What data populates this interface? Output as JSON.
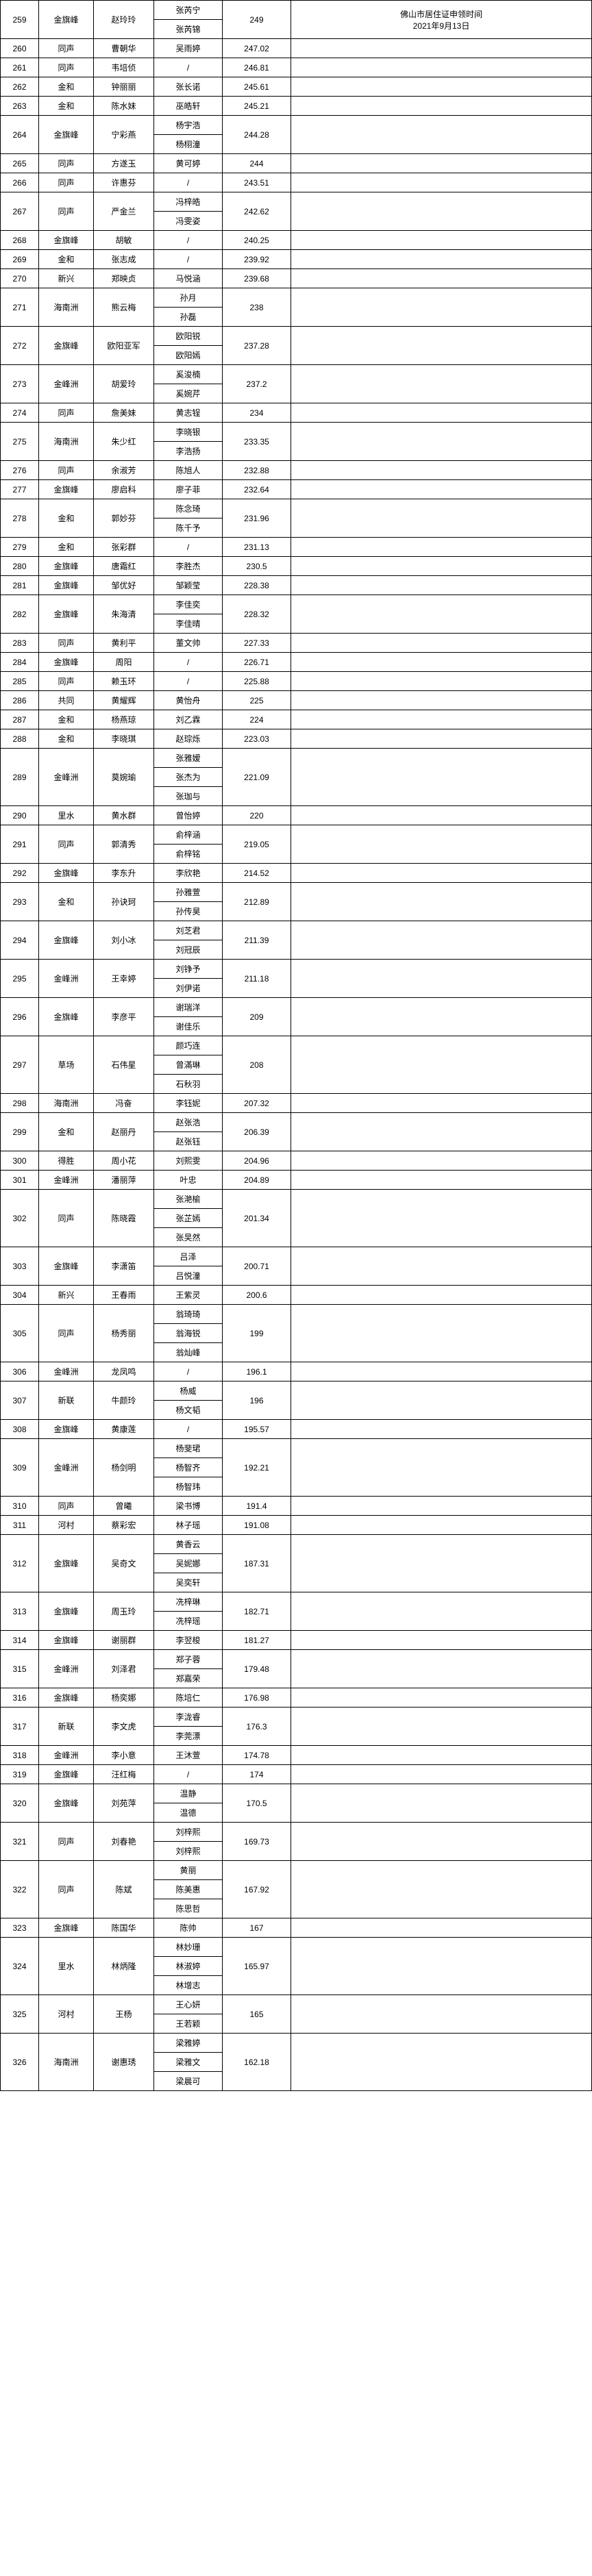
{
  "header_right": "佛山市居住证申领时间\n2021年9月13日",
  "rows": [
    {
      "n": "259",
      "a": "金旗峰",
      "b": "赵玲玲",
      "c": [
        "张芮宁",
        "张芮锦"
      ],
      "d": "249",
      "e": ""
    },
    {
      "n": "260",
      "a": "同声",
      "b": "曹朝华",
      "c": [
        "吴雨婷"
      ],
      "d": "247.02",
      "e": ""
    },
    {
      "n": "261",
      "a": "同声",
      "b": "韦培侦",
      "c": [
        "/"
      ],
      "d": "246.81",
      "e": ""
    },
    {
      "n": "262",
      "a": "金和",
      "b": "钟丽丽",
      "c": [
        "张长诺"
      ],
      "d": "245.61",
      "e": ""
    },
    {
      "n": "263",
      "a": "金和",
      "b": "陈水妹",
      "c": [
        "巫皓轩"
      ],
      "d": "245.21",
      "e": ""
    },
    {
      "n": "264",
      "a": "金旗峰",
      "b": "宁彩燕",
      "c": [
        "杨宇浩",
        "杨栩潼"
      ],
      "d": "244.28",
      "e": ""
    },
    {
      "n": "265",
      "a": "同声",
      "b": "方遂玉",
      "c": [
        "黄可婷"
      ],
      "d": "244",
      "e": ""
    },
    {
      "n": "266",
      "a": "同声",
      "b": "许惠芬",
      "c": [
        "/"
      ],
      "d": "243.51",
      "e": ""
    },
    {
      "n": "267",
      "a": "同声",
      "b": "严金兰",
      "c": [
        "冯梓皓",
        "冯雯姿"
      ],
      "d": "242.62",
      "e": ""
    },
    {
      "n": "268",
      "a": "金旗峰",
      "b": "胡敏",
      "c": [
        "/"
      ],
      "d": "240.25",
      "e": ""
    },
    {
      "n": "269",
      "a": "金和",
      "b": "张志成",
      "c": [
        "/"
      ],
      "d": "239.92",
      "e": ""
    },
    {
      "n": "270",
      "a": "新兴",
      "b": "郑映贞",
      "c": [
        "马悦涵"
      ],
      "d": "239.68",
      "e": ""
    },
    {
      "n": "271",
      "a": "海南洲",
      "b": "熊云梅",
      "c": [
        "孙月",
        "孙磊"
      ],
      "d": "238",
      "e": ""
    },
    {
      "n": "272",
      "a": "金旗峰",
      "b": "欧阳亚军",
      "c": [
        "欧阳锐",
        "欧阳嫣"
      ],
      "d": "237.28",
      "e": ""
    },
    {
      "n": "273",
      "a": "金峰洲",
      "b": "胡爱玲",
      "c": [
        "奚浚楠",
        "奚婉芹"
      ],
      "d": "237.2",
      "e": ""
    },
    {
      "n": "274",
      "a": "同声",
      "b": "詹美妹",
      "c": [
        "黄志锃"
      ],
      "d": "234",
      "e": ""
    },
    {
      "n": "275",
      "a": "海南洲",
      "b": "朱少红",
      "c": [
        "李晓银",
        "李浩扬"
      ],
      "d": "233.35",
      "e": ""
    },
    {
      "n": "276",
      "a": "同声",
      "b": "余淑芳",
      "c": [
        "陈旭人"
      ],
      "d": "232.88",
      "e": ""
    },
    {
      "n": "277",
      "a": "金旗峰",
      "b": "廖启科",
      "c": [
        "廖子菲"
      ],
      "d": "232.64",
      "e": ""
    },
    {
      "n": "278",
      "a": "金和",
      "b": "郭妙芬",
      "c": [
        "陈念琦",
        "陈千予"
      ],
      "d": "231.96",
      "e": ""
    },
    {
      "n": "279",
      "a": "金和",
      "b": "张彩群",
      "c": [
        "/"
      ],
      "d": "231.13",
      "e": ""
    },
    {
      "n": "280",
      "a": "金旗峰",
      "b": "唐霜红",
      "c": [
        "李胜杰"
      ],
      "d": "230.5",
      "e": ""
    },
    {
      "n": "281",
      "a": "金旗峰",
      "b": "邹优好",
      "c": [
        "邹颖莹"
      ],
      "d": "228.38",
      "e": ""
    },
    {
      "n": "282",
      "a": "金旗峰",
      "b": "朱海清",
      "c": [
        "李佳奕",
        "李佳晴"
      ],
      "d": "228.32",
      "e": ""
    },
    {
      "n": "283",
      "a": "同声",
      "b": "黄利平",
      "c": [
        "董文帅"
      ],
      "d": "227.33",
      "e": ""
    },
    {
      "n": "284",
      "a": "金旗峰",
      "b": "周阳",
      "c": [
        "/"
      ],
      "d": "226.71",
      "e": ""
    },
    {
      "n": "285",
      "a": "同声",
      "b": "赖玉环",
      "c": [
        "/"
      ],
      "d": "225.88",
      "e": ""
    },
    {
      "n": "286",
      "a": "共同",
      "b": "黄耀辉",
      "c": [
        "黄怡舟"
      ],
      "d": "225",
      "e": ""
    },
    {
      "n": "287",
      "a": "金和",
      "b": "杨燕琼",
      "c": [
        "刘乙霖"
      ],
      "d": "224",
      "e": ""
    },
    {
      "n": "288",
      "a": "金和",
      "b": "李晓琪",
      "c": [
        "赵琮烁"
      ],
      "d": "223.03",
      "e": ""
    },
    {
      "n": "289",
      "a": "金峰洲",
      "b": "莫婉瑜",
      "c": [
        "张雅嫒",
        "张杰为",
        "张珈与"
      ],
      "d": "221.09",
      "e": ""
    },
    {
      "n": "290",
      "a": "里水",
      "b": "黄水群",
      "c": [
        "曾怡婷"
      ],
      "d": "220",
      "e": ""
    },
    {
      "n": "291",
      "a": "同声",
      "b": "郭清秀",
      "c": [
        "俞梓涵",
        "俞梓铭"
      ],
      "d": "219.05",
      "e": ""
    },
    {
      "n": "292",
      "a": "金旗峰",
      "b": "李东升",
      "c": [
        "李欣艳"
      ],
      "d": "214.52",
      "e": ""
    },
    {
      "n": "293",
      "a": "金和",
      "b": "孙诀珂",
      "c": [
        "孙雅萱",
        "孙传昊"
      ],
      "d": "212.89",
      "e": ""
    },
    {
      "n": "294",
      "a": "金旗峰",
      "b": "刘小冰",
      "c": [
        "刘芝君",
        "刘冠辰"
      ],
      "d": "211.39",
      "e": ""
    },
    {
      "n": "295",
      "a": "金峰洲",
      "b": "王幸婷",
      "c": [
        "刘铮予",
        "刘伊诺"
      ],
      "d": "211.18",
      "e": ""
    },
    {
      "n": "296",
      "a": "金旗峰",
      "b": "李彦平",
      "c": [
        "谢瑞洋",
        "谢佳乐"
      ],
      "d": "209",
      "e": ""
    },
    {
      "n": "297",
      "a": "草场",
      "b": "石伟星",
      "c": [
        "颜巧连",
        "曾滿琳",
        "石秋羽"
      ],
      "d": "208",
      "e": ""
    },
    {
      "n": "298",
      "a": "海南洲",
      "b": "冯奋",
      "c": [
        "李钰妮"
      ],
      "d": "207.32",
      "e": ""
    },
    {
      "n": "299",
      "a": "金和",
      "b": "赵丽丹",
      "c": [
        "赵张浩",
        "赵张钰"
      ],
      "d": "206.39",
      "e": ""
    },
    {
      "n": "300",
      "a": "得胜",
      "b": "周小花",
      "c": [
        "刘熙雯"
      ],
      "d": "204.96",
      "e": ""
    },
    {
      "n": "301",
      "a": "金峰洲",
      "b": "潘丽萍",
      "c": [
        "叶忠"
      ],
      "d": "204.89",
      "e": ""
    },
    {
      "n": "302",
      "a": "同声",
      "b": "陈晓霞",
      "c": [
        "张滟榆",
        "张芷嫣",
        "张旲然"
      ],
      "d": "201.34",
      "e": ""
    },
    {
      "n": "303",
      "a": "金旗峰",
      "b": "李潇笛",
      "c": [
        "吕泽",
        "吕悦潼"
      ],
      "d": "200.71",
      "e": ""
    },
    {
      "n": "304",
      "a": "新兴",
      "b": "王春雨",
      "c": [
        "王紫灵"
      ],
      "d": "200.6",
      "e": ""
    },
    {
      "n": "305",
      "a": "同声",
      "b": "杨秀丽",
      "c": [
        "翁琦琦",
        "翁海锐",
        "翁灿峰"
      ],
      "d": "199",
      "e": ""
    },
    {
      "n": "306",
      "a": "金峰洲",
      "b": "龙凤鸣",
      "c": [
        "/"
      ],
      "d": "196.1",
      "e": ""
    },
    {
      "n": "307",
      "a": "新联",
      "b": "牛颜玲",
      "c": [
        "杨威",
        "杨文韬"
      ],
      "d": "196",
      "e": ""
    },
    {
      "n": "308",
      "a": "金旗峰",
      "b": "黄康莲",
      "c": [
        "/"
      ],
      "d": "195.57",
      "e": ""
    },
    {
      "n": "309",
      "a": "金峰洲",
      "b": "杨剑明",
      "c": [
        "杨斐珺",
        "杨智齐",
        "杨智玮"
      ],
      "d": "192.21",
      "e": ""
    },
    {
      "n": "310",
      "a": "同声",
      "b": "曾曦",
      "c": [
        "梁书博"
      ],
      "d": "191.4",
      "e": ""
    },
    {
      "n": "311",
      "a": "河村",
      "b": "蔡彩宏",
      "c": [
        "林子瑶"
      ],
      "d": "191.08",
      "e": ""
    },
    {
      "n": "312",
      "a": "金旗峰",
      "b": "吴奇文",
      "c": [
        "黄香云",
        "吴妮娜",
        "吴奕轩"
      ],
      "d": "187.31",
      "e": ""
    },
    {
      "n": "313",
      "a": "金旗峰",
      "b": "周玉玲",
      "c": [
        "冼梓琳",
        "冼梓瑶"
      ],
      "d": "182.71",
      "e": ""
    },
    {
      "n": "314",
      "a": "金旗峰",
      "b": "谢丽群",
      "c": [
        "李翌梭"
      ],
      "d": "181.27",
      "e": ""
    },
    {
      "n": "315",
      "a": "金峰洲",
      "b": "刘泽君",
      "c": [
        "郑子蓉",
        "郑嘉荣"
      ],
      "d": "179.48",
      "e": ""
    },
    {
      "n": "316",
      "a": "金旗峰",
      "b": "杨奕娜",
      "c": [
        "陈培仁"
      ],
      "d": "176.98",
      "e": ""
    },
    {
      "n": "317",
      "a": "新联",
      "b": "李文虎",
      "c": [
        "李泷睿",
        "李莞漂"
      ],
      "d": "176.3",
      "e": ""
    },
    {
      "n": "318",
      "a": "金峰洲",
      "b": "李小意",
      "c": [
        "王沐萱"
      ],
      "d": "174.78",
      "e": ""
    },
    {
      "n": "319",
      "a": "金旗峰",
      "b": "汪红梅",
      "c": [
        "/"
      ],
      "d": "174",
      "e": ""
    },
    {
      "n": "320",
      "a": "金旗峰",
      "b": "刘苑萍",
      "c": [
        "温静",
        "温德"
      ],
      "d": "170.5",
      "e": ""
    },
    {
      "n": "321",
      "a": "同声",
      "b": "刘春艳",
      "c": [
        "刘梓熙",
        "刘梓熙"
      ],
      "d": "169.73",
      "e": ""
    },
    {
      "n": "322",
      "a": "同声",
      "b": "陈斌",
      "c": [
        "黄丽",
        "陈美惠",
        "陈思哲"
      ],
      "d": "167.92",
      "e": ""
    },
    {
      "n": "323",
      "a": "金旗峰",
      "b": "陈国华",
      "c": [
        "陈帅"
      ],
      "d": "167",
      "e": ""
    },
    {
      "n": "324",
      "a": "里水",
      "b": "林炳隆",
      "c": [
        "林妙珊",
        "林淑婷",
        "林增志"
      ],
      "d": "165.97",
      "e": ""
    },
    {
      "n": "325",
      "a": "河村",
      "b": "王杨",
      "c": [
        "王心妍",
        "王若颖"
      ],
      "d": "165",
      "e": ""
    },
    {
      "n": "326",
      "a": "海南洲",
      "b": "谢惠琇",
      "c": [
        "梁雅婷",
        "梁雅文",
        "梁晨可"
      ],
      "d": "162.18",
      "e": ""
    }
  ]
}
